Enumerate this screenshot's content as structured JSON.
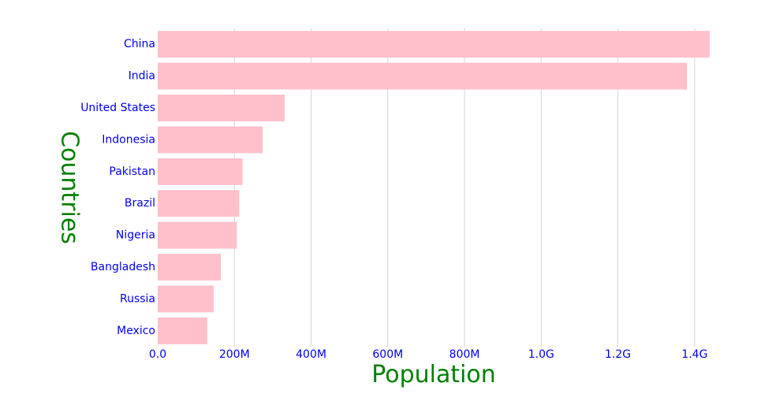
{
  "chart_data": {
    "type": "bar",
    "orientation": "horizontal",
    "categories": [
      "China",
      "India",
      "United States",
      "Indonesia",
      "Pakistan",
      "Brazil",
      "Nigeria",
      "Bangladesh",
      "Russia",
      "Mexico"
    ],
    "values": [
      1439323776,
      1380004385,
      331002651,
      273523615,
      220892340,
      212559417,
      206139589,
      164689383,
      145934462,
      128932753
    ],
    "xlabel": "Population",
    "ylabel": "Countries",
    "xlim": [
      0,
      1439323776
    ],
    "xticks": [
      {
        "value": 0,
        "label": "0.0"
      },
      {
        "value": 200000000,
        "label": "200M"
      },
      {
        "value": 400000000,
        "label": "400M"
      },
      {
        "value": 600000000,
        "label": "600M"
      },
      {
        "value": 800000000,
        "label": "800M"
      },
      {
        "value": 1000000000,
        "label": "1.0G"
      },
      {
        "value": 1200000000,
        "label": "1.2G"
      },
      {
        "value": 1400000000,
        "label": "1.4G"
      }
    ],
    "grid": "vertical",
    "legend": "none",
    "colors": {
      "bar": "#ffc0cb",
      "tick_labels": "#0000ee",
      "axis_titles": "#008000",
      "grid": "#d3d3d3"
    }
  }
}
